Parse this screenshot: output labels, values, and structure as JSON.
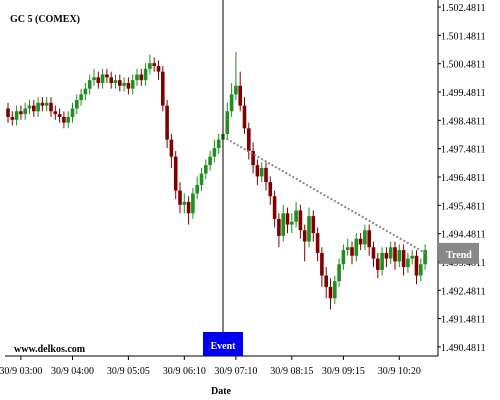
{
  "chart_data": {
    "type": "candlestick",
    "title": "GC 5 (COMEX)",
    "watermark": "www.delkos.com",
    "x_label": "Date",
    "x": [
      "30/9 02:45",
      "30/9 02:50",
      "30/9 02:55",
      "30/9 03:00",
      "30/9 03:05",
      "30/9 03:10",
      "30/9 03:15",
      "30/9 03:20",
      "30/9 03:25",
      "30/9 03:30",
      "30/9 03:35",
      "30/9 03:40",
      "30/9 03:45",
      "30/9 03:50",
      "30/9 03:55",
      "30/9 04:00",
      "30/9 04:05",
      "30/9 04:10",
      "30/9 04:15",
      "30/9 04:20",
      "30/9 04:25",
      "30/9 04:30",
      "30/9 04:35",
      "30/9 04:40",
      "30/9 04:45",
      "30/9 04:50",
      "30/9 04:55",
      "30/9 05:00",
      "30/9 05:05",
      "30/9 05:10",
      "30/9 05:15",
      "30/9 05:20",
      "30/9 05:25",
      "30/9 05:30",
      "30/9 05:35",
      "30/9 05:40",
      "30/9 05:45",
      "30/9 05:50",
      "30/9 05:55",
      "30/9 06:00",
      "30/9 06:05",
      "30/9 06:10",
      "30/9 06:15",
      "30/9 06:20",
      "30/9 06:25",
      "30/9 06:30",
      "30/9 06:35",
      "30/9 06:40",
      "30/9 06:45",
      "30/9 06:50",
      "30/9 06:55",
      "30/9 07:00",
      "30/9 07:05",
      "30/9 07:10",
      "30/9 07:15",
      "30/9 07:20",
      "30/9 07:25",
      "30/9 07:30",
      "30/9 07:35",
      "30/9 07:40",
      "30/9 07:45",
      "30/9 07:50",
      "30/9 07:55",
      "30/9 08:00",
      "30/9 08:05",
      "30/9 08:10",
      "30/9 08:15",
      "30/9 08:20",
      "30/9 08:25",
      "30/9 08:30",
      "30/9 08:35",
      "30/9 08:40",
      "30/9 08:45",
      "30/9 08:50",
      "30/9 08:55",
      "30/9 09:00",
      "30/9 09:05",
      "30/9 09:10",
      "30/9 09:15",
      "30/9 09:20",
      "30/9 09:25",
      "30/9 09:30",
      "30/9 09:35",
      "30/9 09:40",
      "30/9 09:45",
      "30/9 09:50",
      "30/9 09:55",
      "30/9 10:00",
      "30/9 10:05",
      "30/9 10:10",
      "30/9 10:15",
      "30/9 10:20",
      "30/9 10:25",
      "30/9 10:30",
      "30/9 10:35",
      "30/9 10:40",
      "30/9 10:45",
      "30/9 10:50"
    ],
    "open": [
      1498.9,
      1498.6,
      1498.5,
      1498.8,
      1498.7,
      1498.9,
      1499.0,
      1498.8,
      1499.1,
      1499.0,
      1499.1,
      1498.8,
      1498.7,
      1498.6,
      1498.4,
      1498.6,
      1498.9,
      1499.2,
      1499.4,
      1499.6,
      1499.9,
      1500.0,
      1499.8,
      1500.1,
      1500.0,
      1499.8,
      1499.9,
      1499.7,
      1499.8,
      1499.6,
      1499.9,
      1500.1,
      1499.9,
      1500.3,
      1500.5,
      1500.4,
      1500.2,
      1499.0,
      1497.8,
      1497.2,
      1496.0,
      1495.5,
      1495.6,
      1495.2,
      1495.9,
      1496.2,
      1496.6,
      1496.9,
      1497.2,
      1497.5,
      1497.8,
      1498.0,
      1498.8,
      1499.4,
      1499.7,
      1499.0,
      1498.2,
      1497.4,
      1496.9,
      1496.5,
      1496.8,
      1496.3,
      1495.8,
      1495.0,
      1494.4,
      1495.2,
      1494.8,
      1494.9,
      1495.3,
      1494.6,
      1494.2,
      1495.1,
      1494.5,
      1493.8,
      1493.0,
      1492.6,
      1492.2,
      1492.8,
      1493.4,
      1493.9,
      1494.0,
      1493.7,
      1494.3,
      1494.1,
      1494.6,
      1494.0,
      1493.6,
      1493.2,
      1493.8,
      1493.6,
      1494.0,
      1493.5,
      1493.9,
      1493.3,
      1493.6,
      1493.7,
      1493.0,
      1493.4
    ],
    "high": [
      1499.1,
      1498.8,
      1499.0,
      1499.0,
      1499.1,
      1499.2,
      1499.2,
      1499.3,
      1499.3,
      1499.3,
      1499.3,
      1499.0,
      1498.9,
      1498.8,
      1498.8,
      1499.1,
      1499.4,
      1499.6,
      1499.8,
      1500.1,
      1500.3,
      1500.2,
      1500.3,
      1500.3,
      1500.2,
      1500.1,
      1500.1,
      1500.0,
      1500.0,
      1500.1,
      1500.3,
      1500.3,
      1500.5,
      1500.8,
      1500.7,
      1500.6,
      1500.4,
      1499.2,
      1498.0,
      1497.4,
      1496.3,
      1495.9,
      1495.8,
      1496.1,
      1496.5,
      1496.8,
      1497.1,
      1497.4,
      1497.8,
      1498.0,
      1498.3,
      1499.1,
      1499.8,
      1500.9,
      1500.2,
      1499.3,
      1498.4,
      1497.7,
      1497.1,
      1497.0,
      1497.0,
      1496.5,
      1496.0,
      1495.2,
      1495.5,
      1495.4,
      1495.2,
      1495.6,
      1495.5,
      1494.8,
      1495.4,
      1495.3,
      1494.7,
      1494.0,
      1493.3,
      1492.9,
      1493.0,
      1493.6,
      1494.1,
      1494.3,
      1494.2,
      1494.5,
      1494.5,
      1494.8,
      1494.8,
      1494.2,
      1493.8,
      1494.0,
      1494.0,
      1494.2,
      1494.2,
      1494.1,
      1494.1,
      1493.8,
      1493.9,
      1493.9,
      1493.6,
      1494.1
    ],
    "low": [
      1498.4,
      1498.3,
      1498.3,
      1498.5,
      1498.5,
      1498.7,
      1498.6,
      1498.6,
      1498.8,
      1498.8,
      1498.6,
      1498.5,
      1498.4,
      1498.2,
      1498.2,
      1498.4,
      1498.7,
      1499.0,
      1499.2,
      1499.4,
      1499.7,
      1499.6,
      1499.6,
      1499.8,
      1499.6,
      1499.6,
      1499.5,
      1499.5,
      1499.4,
      1499.4,
      1499.7,
      1499.7,
      1499.7,
      1500.1,
      1500.2,
      1499.9,
      1498.8,
      1497.5,
      1496.8,
      1495.7,
      1495.2,
      1495.2,
      1494.8,
      1495.0,
      1495.7,
      1496.0,
      1496.4,
      1496.7,
      1497.0,
      1497.3,
      1497.6,
      1497.8,
      1498.6,
      1499.2,
      1498.8,
      1498.0,
      1497.1,
      1496.6,
      1496.2,
      1496.3,
      1496.0,
      1495.5,
      1494.7,
      1494.0,
      1494.2,
      1494.5,
      1494.5,
      1494.7,
      1494.3,
      1493.5,
      1494.0,
      1494.2,
      1493.5,
      1492.6,
      1492.2,
      1491.8,
      1492.0,
      1492.6,
      1493.2,
      1493.7,
      1493.4,
      1493.5,
      1493.9,
      1493.9,
      1493.7,
      1493.3,
      1492.9,
      1493.0,
      1493.3,
      1493.4,
      1493.2,
      1493.3,
      1493.0,
      1493.1,
      1493.4,
      1492.7,
      1492.8,
      1493.2
    ],
    "close": [
      1498.6,
      1498.5,
      1498.8,
      1498.7,
      1498.9,
      1499.0,
      1498.8,
      1499.1,
      1499.0,
      1499.1,
      1498.8,
      1498.7,
      1498.6,
      1498.4,
      1498.6,
      1498.9,
      1499.2,
      1499.4,
      1499.6,
      1499.9,
      1500.0,
      1499.8,
      1500.1,
      1500.0,
      1499.8,
      1499.9,
      1499.7,
      1499.8,
      1499.6,
      1499.9,
      1500.1,
      1499.9,
      1500.3,
      1500.5,
      1500.4,
      1500.2,
      1499.0,
      1497.8,
      1497.2,
      1496.0,
      1495.5,
      1495.6,
      1495.2,
      1495.9,
      1496.2,
      1496.6,
      1496.9,
      1497.2,
      1497.5,
      1497.8,
      1498.0,
      1498.8,
      1499.4,
      1499.7,
      1499.0,
      1498.2,
      1497.4,
      1496.9,
      1496.5,
      1496.8,
      1496.3,
      1495.8,
      1495.0,
      1494.4,
      1495.2,
      1494.8,
      1494.9,
      1495.3,
      1494.6,
      1494.2,
      1495.1,
      1494.5,
      1493.8,
      1493.0,
      1492.6,
      1492.2,
      1492.8,
      1493.4,
      1493.9,
      1494.0,
      1493.7,
      1494.3,
      1494.1,
      1494.6,
      1494.0,
      1493.6,
      1493.2,
      1493.8,
      1493.6,
      1494.0,
      1493.5,
      1493.9,
      1493.3,
      1493.6,
      1493.7,
      1493.0,
      1493.4,
      1493.9
    ],
    "up_color": "#1f8f1f",
    "down_color": "#800000",
    "ylim": [
      1490.16,
      1502.73
    ],
    "yticks": [
      {
        "value": 1502.4811,
        "label": "1.502.4811"
      },
      {
        "value": 1501.4811,
        "label": "1.501.4811"
      },
      {
        "value": 1500.4811,
        "label": "1.500.4811"
      },
      {
        "value": 1499.4811,
        "label": "1.499.4811"
      },
      {
        "value": 1498.4811,
        "label": "1.498.4811"
      },
      {
        "value": 1497.4811,
        "label": "1.497.4811"
      },
      {
        "value": 1496.4811,
        "label": "1.496.4811"
      },
      {
        "value": 1495.4811,
        "label": "1.495.4811"
      },
      {
        "value": 1494.4811,
        "label": "1.494.4811"
      },
      {
        "value": 1493.4811,
        "label": "1.493.4811"
      },
      {
        "value": 1492.4811,
        "label": "1.492.4811"
      },
      {
        "value": 1491.4811,
        "label": "1.491.4811"
      },
      {
        "value": 1490.4811,
        "label": "1.490.4811"
      }
    ],
    "xticks": [
      "30/9 03:00",
      "30/9 04:00",
      "30/9 05:05",
      "30/9 06:10",
      "30/9 07:10",
      "30/9 08:15",
      "30/9 09:15",
      "30/9 10:20"
    ],
    "event": {
      "label": "Event",
      "x": "30/9 06:55",
      "color": "#0000ee"
    },
    "trend": {
      "label": "Trend",
      "x": [
        "30/9 06:55",
        "30/9 10:50"
      ],
      "values": [
        1497.9,
        1493.8
      ],
      "color": "#888888"
    }
  }
}
